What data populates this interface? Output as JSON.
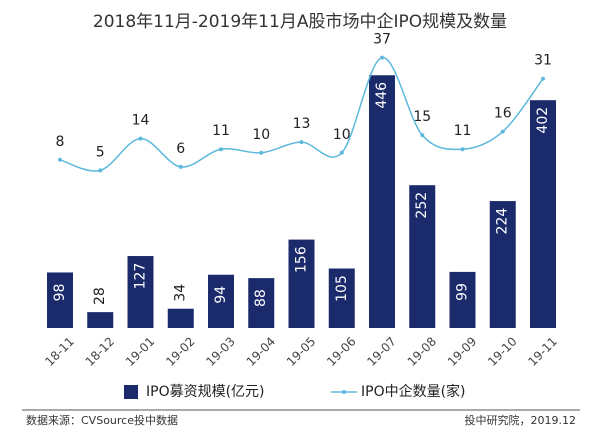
{
  "chart_data": {
    "type": "combo",
    "title": "2018年11月-2019年11月A股市场中企IPO规模及数量",
    "categories": [
      "18-11",
      "18-12",
      "19-01",
      "19-02",
      "19-03",
      "19-04",
      "19-05",
      "19-06",
      "19-07",
      "19-08",
      "19-09",
      "19-10",
      "19-11"
    ],
    "series": [
      {
        "name": "IPO募资规模(亿元)",
        "type": "bar",
        "color": "#1b2a6b",
        "values": [
          98,
          28,
          127,
          34,
          94,
          88,
          156,
          105,
          446,
          252,
          99,
          224,
          402
        ]
      },
      {
        "name": "IPO中企数量(家)",
        "type": "line",
        "color": "#5cb8dc",
        "axis": "y2",
        "values": [
          8,
          5,
          14,
          6,
          11,
          10,
          13,
          10,
          37,
          15,
          11,
          16,
          31
        ]
      }
    ],
    "ylim": [
      0,
      480
    ],
    "y2lim": [
      0,
      40
    ],
    "source": "数据来源：CVSource投中数据",
    "credit": "投中研究院，2019.12"
  }
}
